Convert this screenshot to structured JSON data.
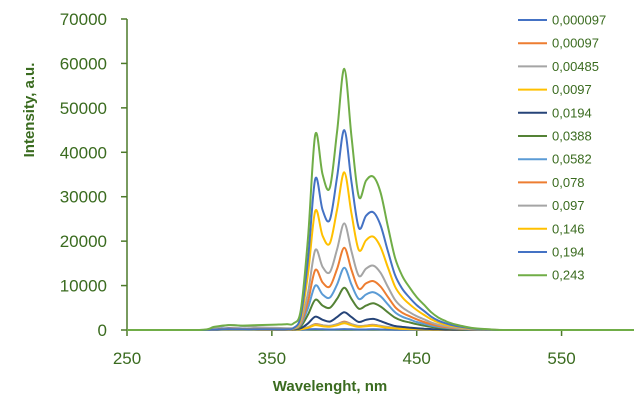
{
  "chart_data": {
    "type": "line",
    "title": "",
    "xlabel": "Wavelenght, nm",
    "ylabel": "Intensity, a.u.",
    "xlim": [
      250,
      600
    ],
    "ylim": [
      0,
      70000
    ],
    "xticks": [
      250,
      350,
      450,
      550
    ],
    "yticks": [
      0,
      10000,
      20000,
      30000,
      40000,
      50000,
      60000,
      70000
    ],
    "grid": false,
    "legend": "top-right",
    "x": [
      250,
      300,
      310,
      320,
      330,
      340,
      350,
      360,
      365,
      370,
      375,
      380,
      385,
      390,
      395,
      400,
      405,
      410,
      415,
      420,
      425,
      430,
      435,
      440,
      445,
      450,
      455,
      460,
      465,
      470,
      475,
      480,
      485,
      490,
      500,
      510,
      550,
      600
    ],
    "series": [
      {
        "name": "0,000097",
        "color": "#4472c4",
        "values": [
          0,
          0,
          150,
          420,
          320,
          150,
          80,
          60,
          60,
          80,
          130,
          200,
          150,
          120,
          130,
          200,
          150,
          110,
          120,
          150,
          120,
          90,
          70,
          50,
          40,
          30,
          25,
          20,
          15,
          10,
          10,
          5,
          5,
          0,
          0,
          0,
          0,
          0
        ]
      },
      {
        "name": "0,00097",
        "color": "#ed7d31",
        "values": [
          0,
          0,
          100,
          300,
          250,
          120,
          80,
          80,
          100,
          200,
          600,
          1350,
          1050,
          900,
          1300,
          1900,
          1300,
          800,
          1000,
          1200,
          900,
          600,
          400,
          300,
          250,
          200,
          150,
          100,
          80,
          60,
          40,
          30,
          20,
          10,
          0,
          0,
          0,
          0
        ]
      },
      {
        "name": "0,00485",
        "color": "#a5a5a5",
        "values": [
          0,
          0,
          400,
          1100,
          900,
          600,
          500,
          400,
          400,
          450,
          650,
          1250,
          1050,
          950,
          1300,
          1700,
          1300,
          900,
          1000,
          1100,
          950,
          700,
          500,
          400,
          300,
          250,
          200,
          150,
          100,
          80,
          60,
          40,
          30,
          20,
          10,
          0,
          0,
          0
        ]
      },
      {
        "name": "0,0097",
        "color": "#ffc000",
        "values": [
          0,
          0,
          50,
          150,
          130,
          100,
          80,
          80,
          100,
          180,
          500,
          1100,
          850,
          750,
          1050,
          1500,
          1050,
          700,
          850,
          950,
          750,
          500,
          350,
          250,
          200,
          150,
          120,
          80,
          60,
          40,
          30,
          20,
          15,
          10,
          0,
          0,
          0,
          0
        ]
      },
      {
        "name": "0,0194",
        "color": "#264478",
        "values": [
          0,
          0,
          50,
          150,
          120,
          100,
          100,
          100,
          150,
          400,
          1500,
          3000,
          2300,
          1900,
          2900,
          4000,
          2900,
          1800,
          2300,
          2500,
          2000,
          1400,
          900,
          700,
          550,
          400,
          300,
          200,
          150,
          100,
          70,
          50,
          30,
          20,
          0,
          0,
          0,
          0
        ]
      },
      {
        "name": "0,0388",
        "color": "#548235",
        "values": [
          0,
          0,
          100,
          200,
          150,
          150,
          150,
          150,
          250,
          800,
          3500,
          6800,
          5500,
          5000,
          7000,
          9500,
          7000,
          4800,
          5500,
          6000,
          5300,
          4000,
          2800,
          2100,
          1700,
          1300,
          1000,
          700,
          500,
          350,
          250,
          180,
          120,
          80,
          30,
          0,
          0,
          0
        ]
      },
      {
        "name": "0,0582",
        "color": "#5b9bd5",
        "values": [
          0,
          0,
          100,
          200,
          150,
          150,
          150,
          150,
          300,
          1200,
          5000,
          10000,
          8000,
          7300,
          10200,
          14000,
          10200,
          7000,
          8000,
          8500,
          7600,
          5800,
          4000,
          3000,
          2400,
          1800,
          1400,
          1000,
          700,
          500,
          350,
          250,
          170,
          100,
          40,
          0,
          0,
          0
        ]
      },
      {
        "name": "0,078",
        "color": "#ed7d31",
        "values": [
          0,
          0,
          100,
          200,
          150,
          150,
          150,
          150,
          300,
          1400,
          6500,
          13500,
          10700,
          9800,
          13700,
          18500,
          13500,
          9300,
          10500,
          11000,
          9800,
          7500,
          5200,
          3900,
          3100,
          2400,
          1800,
          1300,
          900,
          650,
          450,
          320,
          220,
          130,
          50,
          0,
          0,
          0
        ]
      },
      {
        "name": "0,097",
        "color": "#a5a5a5",
        "values": [
          0,
          0,
          100,
          200,
          150,
          150,
          150,
          150,
          350,
          1700,
          8500,
          18000,
          14200,
          13000,
          18100,
          24000,
          17700,
          12200,
          13800,
          14500,
          12900,
          9800,
          6800,
          5100,
          4000,
          3100,
          2400,
          1700,
          1200,
          850,
          600,
          420,
          290,
          170,
          60,
          0,
          0,
          0
        ]
      },
      {
        "name": "0,146",
        "color": "#ffc000",
        "values": [
          0,
          0,
          100,
          200,
          150,
          150,
          150,
          150,
          400,
          2500,
          12800,
          26800,
          21200,
          19500,
          27000,
          35500,
          26200,
          18000,
          20200,
          21000,
          18700,
          14200,
          9800,
          7400,
          5800,
          4500,
          3400,
          2400,
          1700,
          1200,
          850,
          600,
          400,
          250,
          80,
          0,
          0,
          0
        ]
      },
      {
        "name": "0,194",
        "color": "#4472c4",
        "values": [
          0,
          0,
          100,
          200,
          150,
          150,
          150,
          150,
          450,
          3200,
          16200,
          34000,
          27000,
          24800,
          34300,
          45000,
          33300,
          23000,
          25700,
          26500,
          23600,
          17900,
          12400,
          9300,
          7300,
          5600,
          4300,
          3000,
          2100,
          1500,
          1050,
          750,
          500,
          300,
          100,
          0,
          0,
          0
        ]
      },
      {
        "name": "0,243",
        "color": "#70ad47",
        "values": [
          0,
          0,
          700,
          1100,
          1000,
          1100,
          1200,
          1300,
          1500,
          4500,
          21000,
          44000,
          35000,
          32000,
          44500,
          58800,
          43500,
          30000,
          33600,
          34500,
          31000,
          23500,
          16300,
          12200,
          9600,
          7400,
          5700,
          4000,
          2800,
          2000,
          1400,
          1000,
          650,
          400,
          150,
          0,
          0,
          0
        ]
      }
    ]
  }
}
